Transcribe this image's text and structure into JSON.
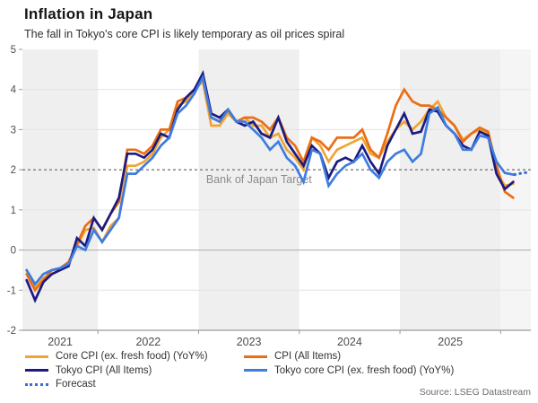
{
  "chart_data": {
    "type": "line",
    "title": "Inflation in Japan",
    "subtitle": "The fall in Tokyo's core CPI is likely temporary as oil prices spiral",
    "source": "Source: LSEG Datastream",
    "x_start_month": "2021-04",
    "x_frequency": "monthly",
    "x_start_decimal": 2021.292,
    "xlim": [
      2021.25,
      2026.3
    ],
    "ylim": [
      -2,
      5
    ],
    "yticks": [
      5,
      4,
      3,
      2,
      1,
      0,
      -1,
      -2
    ],
    "year_boundary_ticks": [
      2022,
      2023,
      2024,
      2025,
      2026
    ],
    "year_labels": [
      2021,
      2022,
      2023,
      2024,
      2025
    ],
    "shaded_years": [
      2021,
      2023,
      2025
    ],
    "forecast_region": [
      2026.0,
      2026.3
    ],
    "grid_on": true,
    "legend_position": "bottom",
    "target_line": {
      "value": 2,
      "label": "Bank of Japan Target"
    },
    "series": [
      {
        "name": "Core CPI (ex. fresh food) (YoY%)",
        "color": "#F0A433",
        "values": [
          -0.5,
          -0.95,
          -0.7,
          -0.6,
          -0.5,
          -0.3,
          0.1,
          0.5,
          0.55,
          0.2,
          0.6,
          0.8,
          2.1,
          2.1,
          2.2,
          2.4,
          2.8,
          3.0,
          3.6,
          3.7,
          4.0,
          4.2,
          3.1,
          3.1,
          3.4,
          3.2,
          3.3,
          3.1,
          3.1,
          2.8,
          2.9,
          2.5,
          2.3,
          2.0,
          2.8,
          2.6,
          2.2,
          2.5,
          2.6,
          2.7,
          2.8,
          2.4,
          2.3,
          2.7,
          3.0,
          3.2,
          3.0,
          3.2,
          3.5,
          3.7,
          3.3,
          3.1,
          2.75,
          2.9,
          3.0,
          2.9,
          1.95,
          1.6,
          1.65
        ]
      },
      {
        "name": "CPI (All Items)",
        "color": "#EB6E15",
        "values": [
          -0.6,
          -1.0,
          -0.75,
          -0.5,
          -0.45,
          -0.3,
          0.15,
          0.6,
          0.8,
          0.5,
          0.9,
          1.2,
          2.5,
          2.5,
          2.4,
          2.6,
          3.0,
          3.0,
          3.7,
          3.8,
          4.0,
          4.3,
          3.3,
          3.2,
          3.5,
          3.2,
          3.3,
          3.3,
          3.2,
          3.0,
          3.3,
          2.8,
          2.6,
          2.2,
          2.8,
          2.7,
          2.5,
          2.8,
          2.8,
          2.8,
          3.0,
          2.5,
          2.3,
          2.9,
          3.6,
          4.0,
          3.7,
          3.6,
          3.6,
          3.5,
          3.3,
          3.1,
          2.7,
          2.9,
          3.05,
          2.95,
          2.1,
          1.45,
          1.3
        ]
      },
      {
        "name": "Tokyo CPI (All Items)",
        "color": "#1B1B80",
        "values": [
          -0.75,
          -1.25,
          -0.8,
          -0.6,
          -0.5,
          -0.4,
          0.3,
          0.1,
          0.8,
          0.5,
          0.9,
          1.3,
          2.4,
          2.4,
          2.3,
          2.5,
          2.9,
          2.8,
          3.5,
          3.8,
          4.0,
          4.4,
          3.4,
          3.3,
          3.5,
          3.2,
          3.1,
          3.2,
          2.9,
          2.8,
          3.3,
          2.7,
          2.4,
          2.1,
          2.6,
          2.4,
          1.8,
          2.2,
          2.3,
          2.2,
          2.6,
          2.2,
          1.9,
          2.6,
          3.0,
          3.4,
          2.9,
          2.95,
          3.5,
          3.45,
          3.1,
          2.9,
          2.6,
          2.5,
          2.95,
          2.85,
          1.9,
          1.52,
          1.7
        ]
      },
      {
        "name": "Tokyo core CPI (ex. fresh food) (YoY%)",
        "color": "#3E7CDF",
        "values": [
          -0.5,
          -0.85,
          -0.6,
          -0.5,
          -0.45,
          -0.35,
          0.1,
          0.0,
          0.5,
          0.2,
          0.5,
          0.8,
          1.9,
          1.9,
          2.1,
          2.3,
          2.6,
          2.8,
          3.4,
          3.6,
          3.9,
          4.3,
          3.3,
          3.2,
          3.5,
          3.2,
          3.2,
          3.0,
          2.8,
          2.5,
          2.7,
          2.3,
          2.1,
          1.7,
          2.5,
          2.4,
          1.6,
          1.9,
          2.1,
          2.2,
          2.4,
          2.0,
          1.8,
          2.2,
          2.4,
          2.5,
          2.2,
          2.4,
          3.4,
          3.55,
          3.1,
          2.9,
          2.5,
          2.5,
          2.85,
          2.8,
          2.2,
          1.92,
          1.88
        ]
      }
    ],
    "forecast": {
      "name": "Forecast",
      "color": "#3A6FD8",
      "points": [
        [
          2026.14,
          1.88
        ],
        [
          2026.22,
          1.92
        ],
        [
          2026.29,
          1.94
        ]
      ]
    }
  },
  "colors": {
    "band": "#EFEFEF",
    "forecast_band": "#F5F5F5",
    "grid": "#E3E3E3",
    "zero_line": "#ABABAB",
    "axis": "#9B9B9B",
    "tick_label": "#4D4D4D",
    "target_dash": "#6F6F6F",
    "annotation": "#8C8C8C"
  }
}
